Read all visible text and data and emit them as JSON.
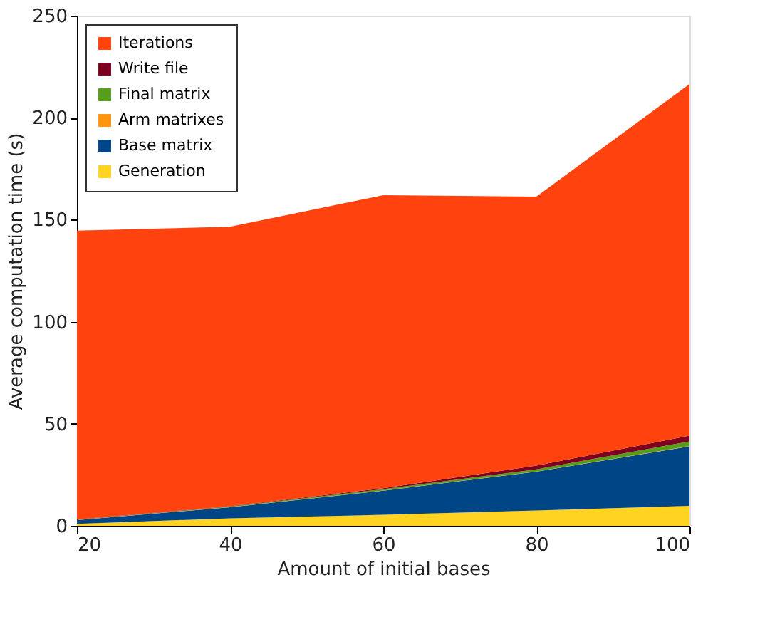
{
  "chart_data": {
    "type": "area",
    "stacked": true,
    "xlabel": "Amount of initial bases",
    "ylabel": "Average computation time (s)",
    "x": [
      20,
      40,
      60,
      80,
      100
    ],
    "series": [
      {
        "name": "Generation",
        "color": "#ffd320",
        "values": [
          1.0,
          3.7,
          5.4,
          7.5,
          9.8
        ]
      },
      {
        "name": "Base matrix",
        "color": "#004586",
        "values": [
          1.8,
          5.4,
          11.8,
          19.0,
          29.1
        ]
      },
      {
        "name": "Arm matrixes",
        "color": "#ff950e",
        "values": [
          0.1,
          0.1,
          0.1,
          0.1,
          0.2
        ]
      },
      {
        "name": "Final matrix",
        "color": "#579d1c",
        "values": [
          0.1,
          0.2,
          0.7,
          1.1,
          2.3
        ]
      },
      {
        "name": "Write file",
        "color": "#7e0021",
        "values": [
          0.1,
          0.2,
          0.4,
          1.8,
          2.8
        ]
      },
      {
        "name": "Iterations",
        "color": "#ff420e",
        "values": [
          141.5,
          137.0,
          143.6,
          131.8,
          172.3
        ]
      }
    ],
    "xlim": [
      20,
      100
    ],
    "xticks": [
      20,
      40,
      60,
      80,
      100
    ],
    "ylim": [
      0,
      250
    ],
    "yticks": [
      0,
      50,
      100,
      150,
      200,
      250
    ],
    "grid": false,
    "legend": "top left"
  }
}
